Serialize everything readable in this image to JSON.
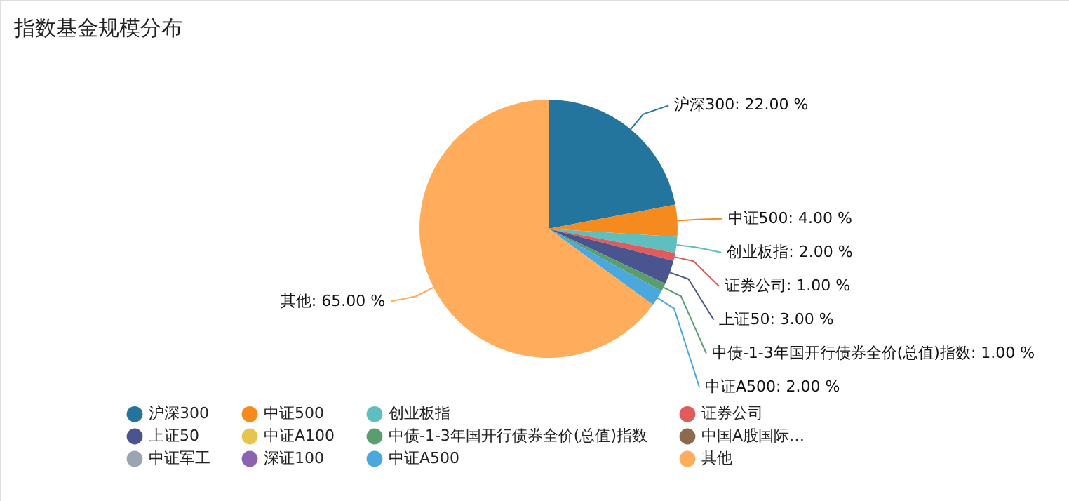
{
  "chart_data": {
    "type": "pie",
    "title": "指数基金规模分布",
    "categories": [
      "沪深300",
      "中证500",
      "创业板指",
      "证券公司",
      "上证50",
      "中证A100",
      "中债-1-3年国开行债券全价(总值)指数",
      "中国A股国际…",
      "中证军工",
      "深证100",
      "中证A500",
      "其他"
    ],
    "values": [
      22,
      4,
      2,
      1,
      3,
      0,
      1,
      0,
      0,
      0,
      2,
      65
    ],
    "value_labels": [
      "沪深300: 22.00 %",
      "中证500: 4.00 %",
      "创业板指: 2.00 %",
      "证券公司: 1.00 %",
      "上证50: 3.00 %",
      null,
      "中债-1-3年国开行债券全价(总值)指数: 1.00 %",
      null,
      null,
      null,
      "中证A500: 2.00 %",
      "其他: 65.00 %"
    ],
    "colors": [
      "#24759e",
      "#f58b1f",
      "#5fbfbf",
      "#e05c5c",
      "#4a5590",
      "#e6c450",
      "#5a9e6e",
      "#8c6a4e",
      "#9aa5b1",
      "#8c63b0",
      "#4aa8dc",
      "#ffad5c"
    ],
    "legend": "bottom"
  }
}
